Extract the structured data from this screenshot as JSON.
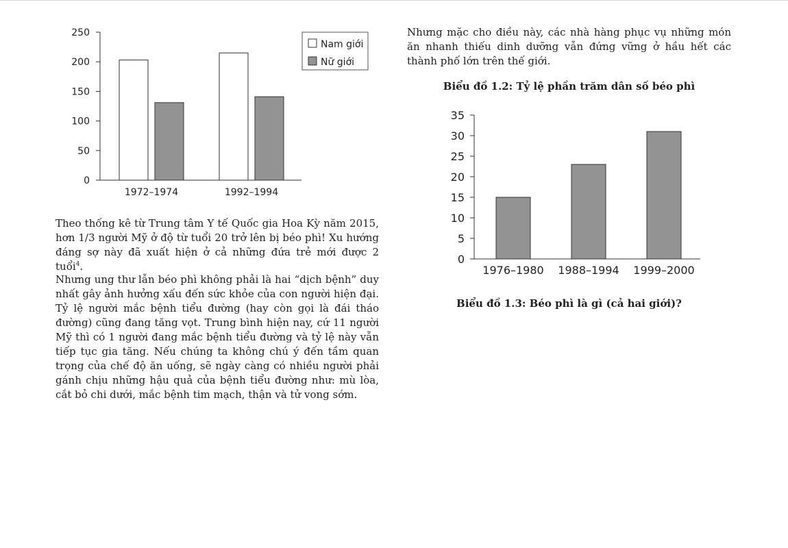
{
  "chart_data": [
    {
      "type": "bar",
      "title": "",
      "xlabel": "",
      "ylabel": "",
      "categories": [
        "1972–1974",
        "1992–1994"
      ],
      "series": [
        {
          "name": "Nam giới",
          "values": [
            203,
            215
          ]
        },
        {
          "name": "Nữ giới",
          "values": [
            131,
            141
          ]
        }
      ],
      "ylim": [
        0,
        250
      ],
      "yticks": [
        0,
        50,
        100,
        150,
        200,
        250
      ],
      "grid": false,
      "legend": "top-right",
      "colors": {
        "Nam giới": "#ffffff",
        "Nữ giới": "#939393"
      }
    },
    {
      "type": "bar",
      "title": "Biểu đồ 1.2: Tỷ lệ phần trăm dân số béo phì",
      "xlabel": "",
      "ylabel": "",
      "categories": [
        "1976–1980",
        "1988–1994",
        "1999–2000"
      ],
      "values": [
        15,
        23,
        31
      ],
      "ylim": [
        0,
        35
      ],
      "yticks": [
        0,
        5,
        10,
        15,
        20,
        25,
        30,
        35
      ],
      "grid": false,
      "colors": {
        "bar": "#939393"
      }
    }
  ],
  "left_column": {
    "paragraph_1": {
      "text": "Theo thống kê từ Trung tâm Y tế Quốc gia Hoa Kỳ năm 2015, hơn 1/3 người Mỹ ở độ từ tuổi 20 trở lên bị béo phì! Xu hướng đáng sợ này đã xuất hiện ở cả những đứa trẻ mới được 2 tuổi",
      "footnote_ref": "4",
      "end": "."
    },
    "paragraph_2": "Nhưng ung thư lẫn béo phì không phải là hai “dịch bệnh” duy nhất gây ảnh hưởng xấu đến sức khỏe của con người hiện đại. Tỷ lệ người mắc bệnh tiểu đường (hay còn gọi là đái tháo đường) cũng đang tăng vọt. Trung bình hiện nay, cứ 11 người Mỹ thì có 1 người đang mắc bệnh tiểu đường và tỷ lệ này vẫn tiếp tục gia tăng. Nếu chúng ta không chú ý đến tầm quan trọng của chế độ ăn uống, sẽ ngày càng có nhiều người phải gánh chịu những hậu quả của bệnh tiểu đường như: mù lòa, cắt bỏ chi dưới, mắc bệnh tim mạch, thận và tử vong sớm."
  },
  "right_column": {
    "paragraph_1": "Nhưng mặc cho điều này, các nhà hàng phục vụ những món ăn nhanh thiếu dinh dưỡng vẫn đứng vững ở hầu hết các thành phố lớn trên thế giới.",
    "caption_1_2": "Biểu đồ 1.2: Tỷ lệ phần trăm dân số béo phì",
    "caption_1_3": "Biểu đồ 1.3: Béo phì là gì (cả hai giới)?"
  }
}
